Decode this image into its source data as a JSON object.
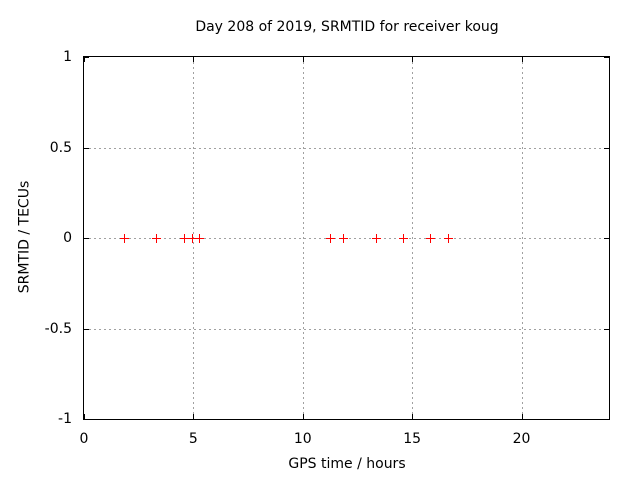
{
  "chart_data": {
    "type": "scatter",
    "title": "Day 208 of 2019, SRMTID for receiver koug",
    "xlabel": "GPS time / hours",
    "ylabel": "SRMTID / TECUs",
    "xlim": [
      0,
      24
    ],
    "ylim": [
      -1,
      1
    ],
    "xticks": {
      "values": [
        0,
        5,
        10,
        15,
        20
      ],
      "labels": [
        "0",
        "5",
        "10",
        "15",
        "20"
      ]
    },
    "yticks": {
      "values": [
        -1,
        -0.5,
        0,
        0.5,
        1
      ],
      "labels": [
        "-1",
        "-0.5",
        "0",
        "0.5",
        "1"
      ]
    },
    "grid": true,
    "legend": "none",
    "marker_style": "plus",
    "colors": {
      "marker": "#ff0000",
      "grid": "#a0a0a0",
      "axis": "#000000",
      "background": "#ffffff"
    },
    "series": [
      {
        "marker": "plus",
        "color": "#ff0000",
        "x": [
          1.81,
          3.29,
          4.55,
          4.93,
          5.26,
          11.24,
          11.83,
          13.37,
          14.59,
          15.8,
          16.62
        ],
        "y": [
          0,
          0,
          0,
          0,
          0,
          0,
          0,
          0,
          0,
          0,
          0
        ]
      }
    ]
  }
}
